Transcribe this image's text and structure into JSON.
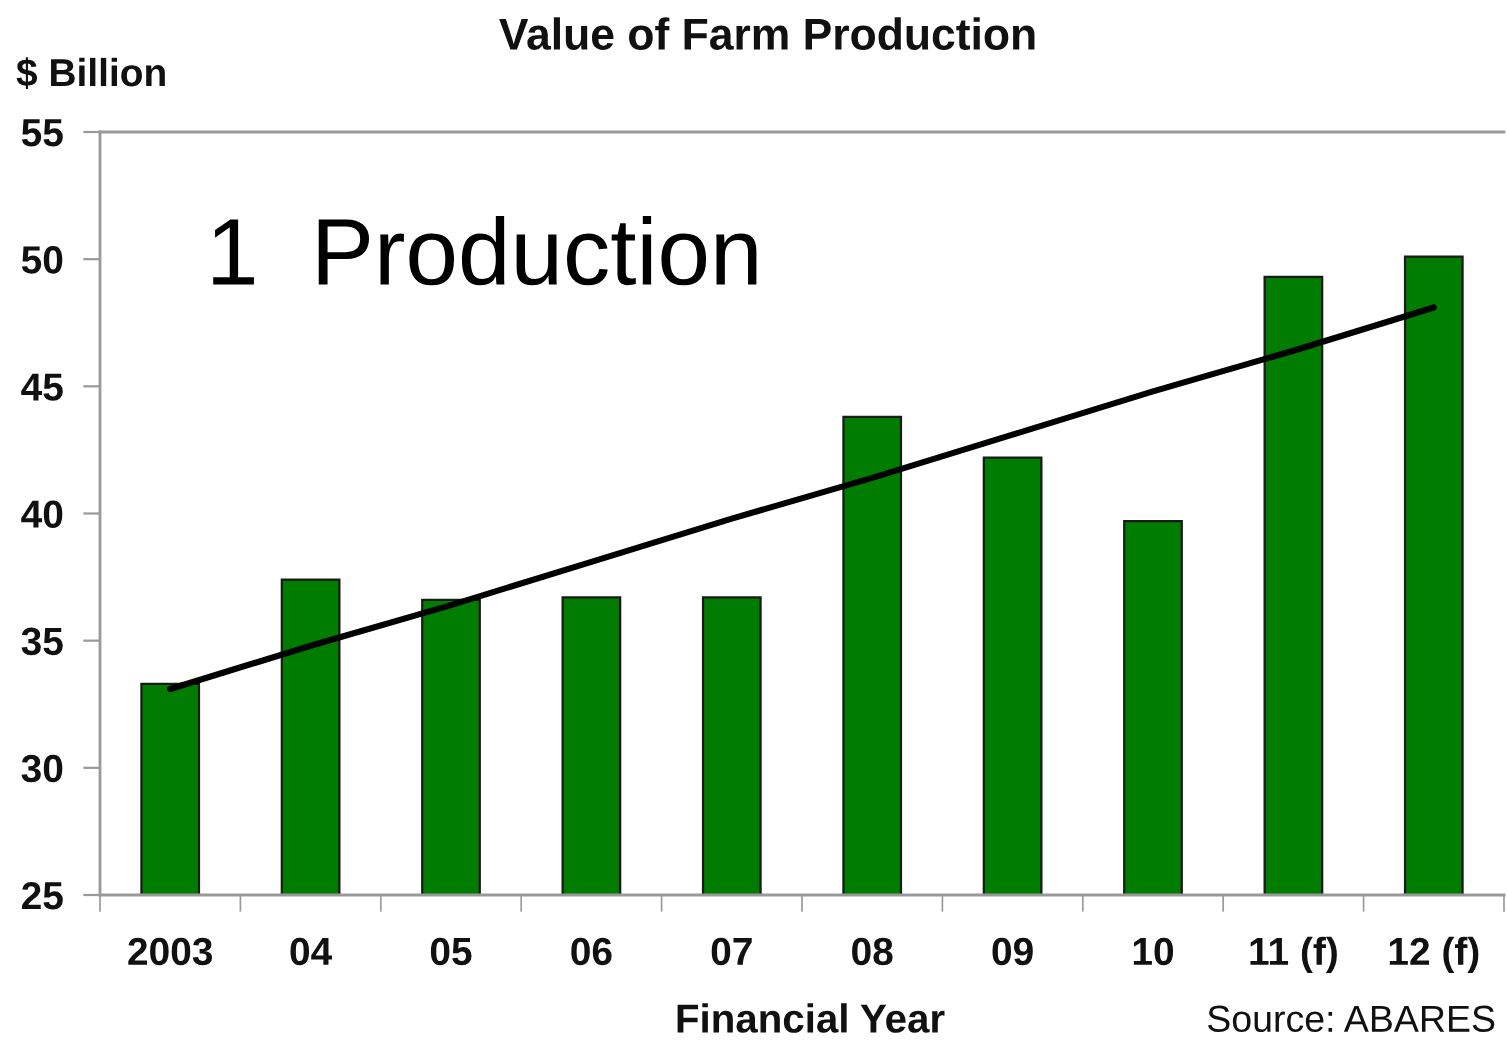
{
  "chart_data": {
    "type": "bar",
    "title": "Value of Farm Production",
    "ylabel": "$ Billion",
    "xlabel": "Financial Year",
    "categories": [
      "2003",
      "04",
      "05",
      "06",
      "07",
      "08",
      "09",
      "10",
      "11 (f)",
      "12 (f)"
    ],
    "series": [
      {
        "color": "#007c00",
        "values": [
          33.3,
          37.4,
          36.6,
          36.7,
          36.7,
          43.8,
          42.2,
          39.7,
          49.3,
          50.1
        ]
      },
      {
        "type": "line",
        "color": "#000000",
        "values": [
          33.1,
          34.8,
          36.4,
          38.1,
          39.8,
          41.4,
          43.1,
          44.8,
          46.4,
          48.1
        ]
      }
    ],
    "ylim": [
      25,
      55
    ],
    "yticks": [
      25,
      30,
      35,
      40,
      45,
      50,
      55
    ],
    "grid": false,
    "annotations": [
      "1  Production",
      "Source: ABARES"
    ]
  }
}
